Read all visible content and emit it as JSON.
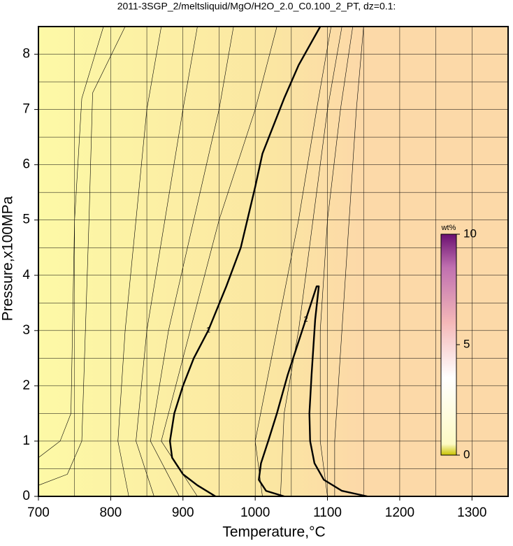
{
  "chart_data": {
    "type": "contour",
    "title": "2011-3SGP_2/meltsliquid/MgO/H2O_2.0_C0.100_2_PT, dz=0.1:",
    "x_label": "Temperature,°C",
    "y_label": "Pressure,x100MPa",
    "xlim": [
      700,
      1350
    ],
    "ylim": [
      0,
      8.5
    ],
    "xticks": [
      700,
      800,
      900,
      1000,
      1100,
      1200,
      1300
    ],
    "yticks": [
      0,
      1,
      2,
      3,
      4,
      5,
      6,
      7,
      8
    ],
    "xgrid": [
      750,
      800,
      850,
      900,
      950,
      1000,
      1050,
      1100,
      1150,
      1200,
      1250,
      1300
    ],
    "ygrid": [
      0.5,
      1,
      1.5,
      2,
      2.5,
      3,
      3.5,
      4,
      4.5,
      5,
      5.5,
      6,
      6.5,
      7,
      7.5,
      8
    ],
    "contours": [
      {
        "label": "1",
        "x": [
          1090,
          1060,
          1040,
          1010,
          1000,
          980,
          960,
          935,
          915,
          900,
          888,
          882,
          885,
          900,
          920,
          945
        ],
        "y": [
          8.5,
          7.8,
          7.2,
          6.2,
          5.6,
          4.5,
          3.8,
          3.0,
          2.5,
          2.0,
          1.5,
          1.0,
          0.7,
          0.4,
          0.2,
          0
        ]
      },
      {
        "label": "2",
        "x": [
          1040,
          1015,
          1005,
          1008,
          1018,
          1030,
          1045,
          1055,
          1070,
          1085,
          1088,
          1083,
          1078,
          1075,
          1076,
          1082,
          1095,
          1120,
          1155
        ],
        "y": [
          0,
          0.1,
          0.3,
          0.6,
          1.0,
          1.5,
          2.2,
          2.6,
          3.2,
          3.8,
          3.8,
          3.2,
          2.2,
          1.5,
          1.0,
          0.6,
          0.3,
          0.1,
          0
        ]
      }
    ],
    "thin_contours": [
      {
        "x": [
          700,
          730,
          745,
          750,
          760,
          790
        ],
        "y": [
          0.7,
          1.0,
          1.5,
          5.0,
          7.2,
          8.5
        ]
      },
      {
        "x": [
          700,
          740,
          760,
          770,
          775,
          820
        ],
        "y": [
          0.2,
          0.4,
          1.0,
          5.0,
          7.3,
          8.5
        ]
      },
      {
        "x": [
          870,
          850,
          835,
          820,
          810,
          825
        ],
        "y": [
          8.5,
          7.0,
          5.0,
          3.0,
          1.0,
          0
        ]
      },
      {
        "x": [
          920,
          900,
          875,
          850,
          835,
          860
        ],
        "y": [
          8.5,
          7.0,
          5.0,
          3.0,
          1.0,
          0
        ]
      },
      {
        "x": [
          970,
          950,
          915,
          880,
          855,
          895
        ],
        "y": [
          8.5,
          7.0,
          5.0,
          3.0,
          1.0,
          0
        ]
      },
      {
        "x": [
          1030,
          1000,
          950,
          910,
          870,
          920
        ],
        "y": [
          8.5,
          7.0,
          5.0,
          3.0,
          1.0,
          0
        ]
      },
      {
        "x": [
          1105,
          1085,
          1060,
          1030,
          1000,
          1010
        ],
        "y": [
          8.5,
          7.0,
          5.0,
          3.0,
          1.0,
          0
        ]
      },
      {
        "x": [
          1120,
          1100,
          1080,
          1060,
          1040,
          1035
        ],
        "y": [
          8.5,
          7.0,
          5.0,
          3.0,
          1.5,
          0
        ]
      },
      {
        "x": [
          1135,
          1118,
          1100,
          1090,
          1090,
          1100
        ],
        "y": [
          8.5,
          7.0,
          5.0,
          3.0,
          1.0,
          0
        ]
      },
      {
        "x": [
          1150,
          1140,
          1130,
          1120,
          1110,
          1110
        ],
        "y": [
          8.5,
          7.0,
          5.0,
          3.0,
          1.0,
          0
        ]
      }
    ],
    "colorbar": {
      "label": "wt%",
      "lim": [
        0,
        10
      ],
      "ticks": [
        0,
        5,
        10
      ]
    }
  }
}
